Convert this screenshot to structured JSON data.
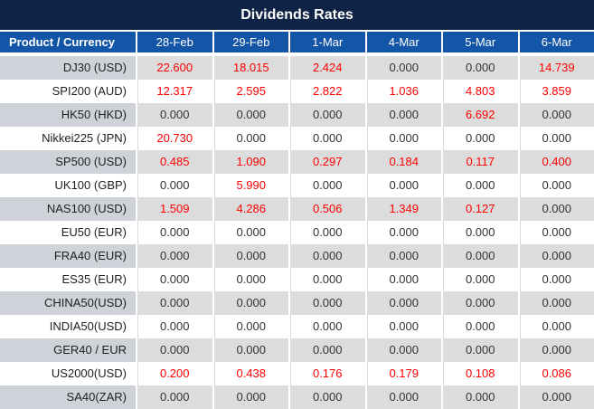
{
  "title": "Dividends Rates",
  "colors": {
    "title_bar_bg": "#0E2345",
    "header_bg": "#1355A6",
    "row_gray": "#DCDCDC",
    "product_col_gray": "#CFD3D9",
    "row_white": "#FFFFFF",
    "header_text": "#FFFFFF",
    "value_red": "#FF0000",
    "value_zero": "#333333"
  },
  "chart_data": {
    "type": "table",
    "title": "Dividends Rates",
    "columns": [
      "Product / Currency",
      "28-Feb",
      "29-Feb",
      "1-Mar",
      "4-Mar",
      "5-Mar",
      "6-Mar"
    ],
    "rows": [
      {
        "product": "DJ30 (USD)",
        "values": [
          "22.600",
          "18.015",
          "2.424",
          "0.000",
          "0.000",
          "14.739"
        ]
      },
      {
        "product": "SPI200 (AUD)",
        "values": [
          "12.317",
          "2.595",
          "2.822",
          "1.036",
          "4.803",
          "3.859"
        ]
      },
      {
        "product": "HK50 (HKD)",
        "values": [
          "0.000",
          "0.000",
          "0.000",
          "0.000",
          "6.692",
          "0.000"
        ]
      },
      {
        "product": "Nikkei225 (JPN)",
        "values": [
          "20.730",
          "0.000",
          "0.000",
          "0.000",
          "0.000",
          "0.000"
        ]
      },
      {
        "product": "SP500 (USD)",
        "values": [
          "0.485",
          "1.090",
          "0.297",
          "0.184",
          "0.117",
          "0.400"
        ]
      },
      {
        "product": "UK100 (GBP)",
        "values": [
          "0.000",
          "5.990",
          "0.000",
          "0.000",
          "0.000",
          "0.000"
        ]
      },
      {
        "product": "NAS100 (USD)",
        "values": [
          "1.509",
          "4.286",
          "0.506",
          "1.349",
          "0.127",
          "0.000"
        ]
      },
      {
        "product": "EU50 (EUR)",
        "values": [
          "0.000",
          "0.000",
          "0.000",
          "0.000",
          "0.000",
          "0.000"
        ]
      },
      {
        "product": "FRA40 (EUR)",
        "values": [
          "0.000",
          "0.000",
          "0.000",
          "0.000",
          "0.000",
          "0.000"
        ]
      },
      {
        "product": "ES35 (EUR)",
        "values": [
          "0.000",
          "0.000",
          "0.000",
          "0.000",
          "0.000",
          "0.000"
        ]
      },
      {
        "product": "CHINA50(USD)",
        "values": [
          "0.000",
          "0.000",
          "0.000",
          "0.000",
          "0.000",
          "0.000"
        ]
      },
      {
        "product": "INDIA50(USD)",
        "values": [
          "0.000",
          "0.000",
          "0.000",
          "0.000",
          "0.000",
          "0.000"
        ]
      },
      {
        "product": "GER40 / EUR",
        "values": [
          "0.000",
          "0.000",
          "0.000",
          "0.000",
          "0.000",
          "0.000"
        ]
      },
      {
        "product": "US2000(USD)",
        "values": [
          "0.200",
          "0.438",
          "0.176",
          "0.179",
          "0.108",
          "0.086"
        ]
      },
      {
        "product": "SA40(ZAR)",
        "values": [
          "0.000",
          "0.000",
          "0.000",
          "0.000",
          "0.000",
          "0.000"
        ]
      }
    ]
  }
}
